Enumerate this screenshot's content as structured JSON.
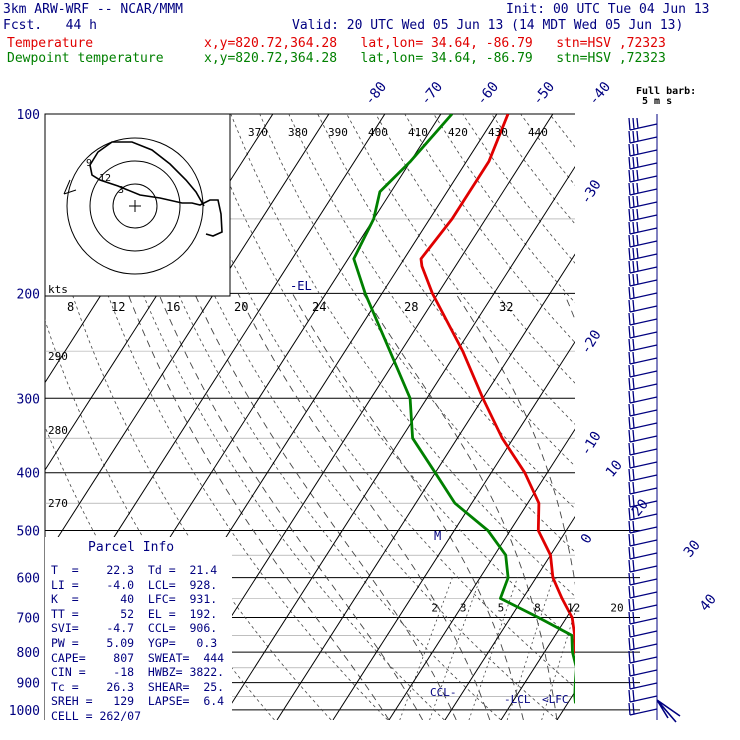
{
  "header": {
    "model": "3km ARW-WRF -- NCAR/MMM",
    "init": "Init: 00 UTC Tue 04 Jun 13",
    "fcst": "Fcst.   44 h",
    "valid": "Valid: 20 UTC Wed 05 Jun 13 (14 MDT Wed 05 Jun 13)",
    "temp_label": "Temperature",
    "dew_label": "Dewpoint temperature",
    "location": "x,y=820.72,364.28   lat,lon= 34.64, -86.79   stn=HSV ,72323",
    "colors": {
      "temp": "#e00000",
      "dew": "#008000",
      "text": "#000080"
    }
  },
  "chart_data": {
    "type": "line",
    "pressure_levels": [
      100,
      200,
      300,
      400,
      500,
      600,
      700,
      800,
      900,
      1000
    ],
    "isotherm_labels": [
      "-80",
      "-70",
      "-60",
      "-50",
      "-40",
      "-30",
      "-20",
      "-10",
      "0",
      "10",
      "20",
      "30",
      "40"
    ],
    "theta_labels": [
      "370",
      "380",
      "390",
      "400",
      "410",
      "420",
      "430",
      "440"
    ],
    "mixing_ratio_labels": [
      "2",
      "3",
      "5",
      "8",
      "12",
      "20"
    ],
    "hodo_speed_labels": [
      "8",
      "12",
      "16",
      "20",
      "24",
      "28",
      "32"
    ],
    "hodo_units": "kts",
    "adiabat_labels": [
      "290",
      "280",
      "270"
    ],
    "barb_title": "Full barb:",
    "barb_units": "5 m s",
    "annotations": {
      "el": "-EL",
      "m": "M",
      "ccl": "CCL",
      "lcl": "LCL",
      "lfc": "LFC"
    },
    "series": [
      {
        "name": "Temperature",
        "points": [
          [
            100,
            -58
          ],
          [
            120,
            -56
          ],
          [
            150,
            -56
          ],
          [
            175,
            -57
          ],
          [
            180,
            -56
          ],
          [
            200,
            -51
          ],
          [
            250,
            -39
          ],
          [
            300,
            -30
          ],
          [
            350,
            -22
          ],
          [
            400,
            -14
          ],
          [
            450,
            -8
          ],
          [
            500,
            -5
          ],
          [
            550,
            0
          ],
          [
            600,
            3
          ],
          [
            650,
            7
          ],
          [
            700,
            11
          ],
          [
            750,
            13.5
          ],
          [
            800,
            15.5
          ],
          [
            850,
            18.5
          ],
          [
            900,
            20
          ],
          [
            950,
            21.5
          ],
          [
            975,
            22.3
          ]
        ]
      },
      {
        "name": "Dewpoint temperature",
        "points": [
          [
            100,
            -68
          ],
          [
            120,
            -70
          ],
          [
            135,
            -72
          ],
          [
            150,
            -70
          ],
          [
            175,
            -69
          ],
          [
            200,
            -63
          ],
          [
            250,
            -52
          ],
          [
            300,
            -43
          ],
          [
            350,
            -38
          ],
          [
            400,
            -30
          ],
          [
            450,
            -23
          ],
          [
            500,
            -14
          ],
          [
            550,
            -8
          ],
          [
            600,
            -5
          ],
          [
            650,
            -4
          ],
          [
            700,
            5
          ],
          [
            750,
            13
          ],
          [
            800,
            15
          ],
          [
            850,
            17.5
          ],
          [
            900,
            19
          ],
          [
            950,
            20.5
          ],
          [
            975,
            21.4
          ]
        ]
      }
    ]
  },
  "parcel_info": {
    "title": "Parcel Info",
    "rows": [
      "T  =    22.3  Td =  21.4",
      "LI =    -4.0  LCL=  928.",
      "K  =      40  LFC=  931.",
      "TT =      52  EL =  192.",
      "SVI=    -4.7  CCL=  906.",
      "PW =    5.09  YGP=   0.3",
      "CAPE=    807  SWEAT=  444",
      "CIN =    -18  HWBZ= 3822.",
      "Tc =    26.3  SHEAR=  25.",
      "SREH =   129  LAPSE=  6.4",
      "CELL = 262/07"
    ]
  }
}
